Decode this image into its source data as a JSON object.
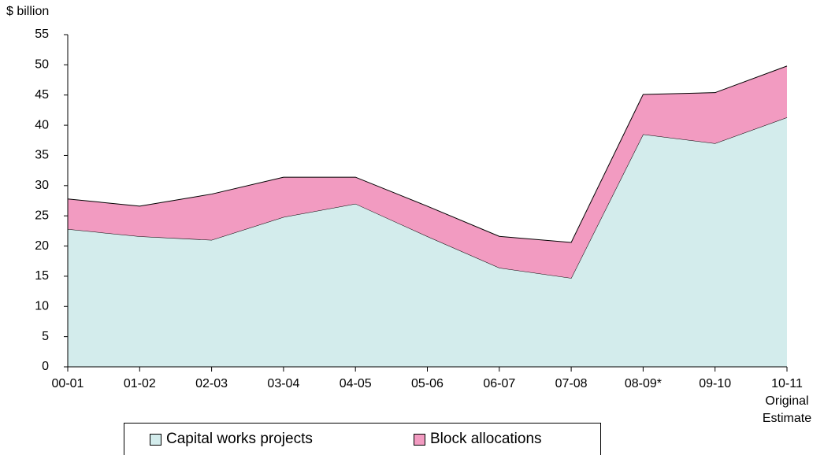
{
  "chart_data": {
    "type": "stacked_area",
    "y_label": "$ billion",
    "categories": [
      "00-01",
      "01-02",
      "02-03",
      "03-04",
      "04-05",
      "05-06",
      "06-07",
      "07-08",
      "08-09*",
      "09-10",
      "10-11\nOriginal\nEstimate"
    ],
    "series": [
      {
        "name": "Capital works projects",
        "color": "#d3ecec",
        "values": [
          22.8,
          21.6,
          21.0,
          24.8,
          27.0,
          21.6,
          16.4,
          14.7,
          38.5,
          37.0,
          41.3
        ]
      },
      {
        "name": "Block allocations",
        "color": "#f29bc1",
        "values": [
          5.0,
          5.0,
          7.6,
          6.6,
          4.4,
          5.0,
          5.2,
          5.9,
          6.6,
          8.4,
          8.5
        ]
      }
    ],
    "ylim": [
      0,
      55
    ],
    "yticks": [
      0,
      5,
      10,
      15,
      20,
      25,
      30,
      35,
      40,
      45,
      50,
      55
    ],
    "grid": false
  }
}
